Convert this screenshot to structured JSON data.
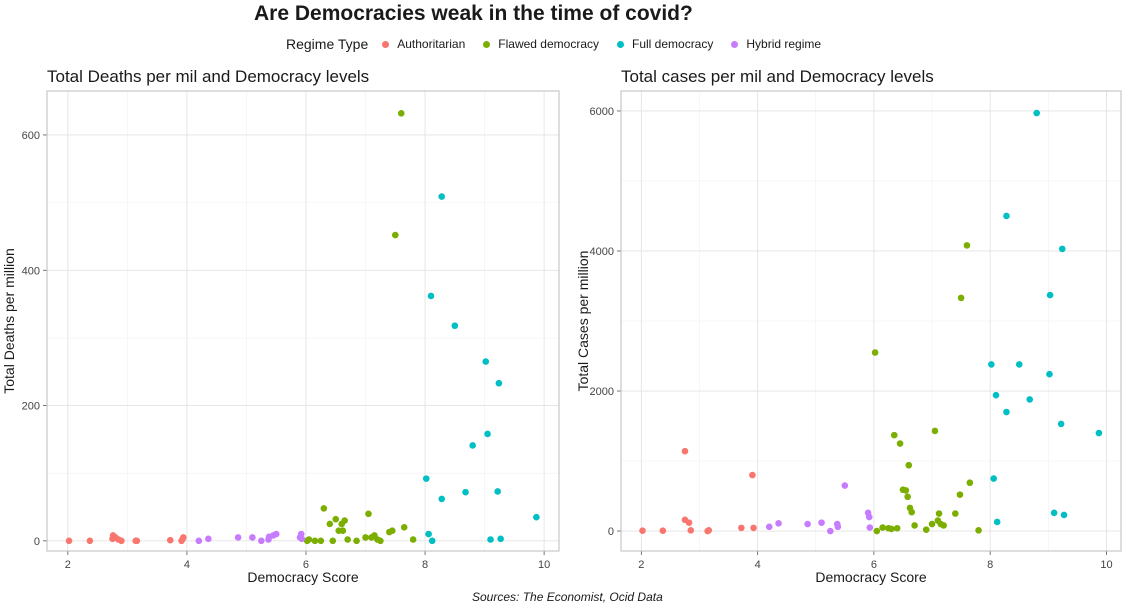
{
  "title": "Are Democracies weak in the time of covid?",
  "legend": {
    "title": "Regime Type",
    "items": [
      {
        "label": "Authoritarian",
        "color": "#F8766D"
      },
      {
        "label": "Flawed democracy",
        "color": "#7CAE00"
      },
      {
        "label": "Full democracy",
        "color": "#00BFC4"
      },
      {
        "label": "Hybrid regime",
        "color": "#C77CFF"
      }
    ]
  },
  "source": "Sources: The Economist, Ocid Data",
  "chart_data": [
    {
      "type": "scatter",
      "title": "Total Deaths per mil and Democracy levels",
      "xlabel": "Democracy Score",
      "ylabel": "Total Deaths per million",
      "xlim": [
        1.65,
        10.25
      ],
      "ylim": [
        -15,
        665
      ],
      "xticks": [
        2,
        4,
        6,
        8,
        10
      ],
      "yticks": [
        0,
        200,
        400,
        600
      ],
      "grid": true,
      "series": [
        {
          "name": "Authoritarian",
          "color": "#F8766D",
          "points": [
            [
              2.02,
              0
            ],
            [
              2.37,
              0
            ],
            [
              2.75,
              3
            ],
            [
              2.76,
              8
            ],
            [
              2.8,
              5
            ],
            [
              2.85,
              2
            ],
            [
              2.9,
              0
            ],
            [
              3.14,
              0
            ],
            [
              3.16,
              0
            ],
            [
              3.72,
              1
            ],
            [
              3.91,
              0
            ],
            [
              3.93,
              3
            ],
            [
              3.94,
              5
            ]
          ]
        },
        {
          "name": "Flawed democracy",
          "color": "#7CAE00",
          "points": [
            [
              6.02,
              0
            ],
            [
              6.05,
              2
            ],
            [
              6.15,
              0
            ],
            [
              6.25,
              0
            ],
            [
              6.3,
              48
            ],
            [
              6.4,
              25
            ],
            [
              6.45,
              0
            ],
            [
              6.5,
              32
            ],
            [
              6.55,
              15
            ],
            [
              6.6,
              25
            ],
            [
              6.62,
              15
            ],
            [
              6.65,
              30
            ],
            [
              6.7,
              2
            ],
            [
              6.85,
              0
            ],
            [
              7.0,
              5
            ],
            [
              7.05,
              40
            ],
            [
              7.1,
              5
            ],
            [
              7.15,
              8
            ],
            [
              7.2,
              2
            ],
            [
              7.25,
              0
            ],
            [
              7.4,
              13
            ],
            [
              7.45,
              15
            ],
            [
              7.5,
              452
            ],
            [
              7.6,
              632
            ],
            [
              7.65,
              20
            ],
            [
              7.8,
              2
            ]
          ]
        },
        {
          "name": "Full democracy",
          "color": "#00BFC4",
          "points": [
            [
              8.02,
              92
            ],
            [
              8.06,
              10
            ],
            [
              8.1,
              362
            ],
            [
              8.12,
              0
            ],
            [
              8.28,
              509
            ],
            [
              8.28,
              62
            ],
            [
              8.5,
              318
            ],
            [
              8.68,
              72
            ],
            [
              8.8,
              141
            ],
            [
              9.02,
              265
            ],
            [
              9.05,
              158
            ],
            [
              9.1,
              2
            ],
            [
              9.22,
              73
            ],
            [
              9.24,
              233
            ],
            [
              9.27,
              3
            ],
            [
              9.87,
              35
            ]
          ]
        },
        {
          "name": "Hybrid regime",
          "color": "#C77CFF",
          "points": [
            [
              4.2,
              0
            ],
            [
              4.36,
              3
            ],
            [
              4.86,
              5
            ],
            [
              5.1,
              5
            ],
            [
              5.25,
              0
            ],
            [
              5.37,
              2
            ],
            [
              5.38,
              6
            ],
            [
              5.45,
              8
            ],
            [
              5.5,
              10
            ],
            [
              5.9,
              5
            ],
            [
              5.92,
              10
            ],
            [
              5.93,
              3
            ]
          ]
        }
      ]
    },
    {
      "type": "scatter",
      "title": "Total cases per mil and Democracy levels",
      "xlabel": "Democracy Score",
      "ylabel": "Total Cases per million",
      "xlim": [
        1.65,
        10.25
      ],
      "ylim": [
        -285,
        6285
      ],
      "xticks": [
        2,
        4,
        6,
        8,
        10
      ],
      "yticks": [
        0,
        2000,
        4000,
        6000
      ],
      "grid": true,
      "series": [
        {
          "name": "Authoritarian",
          "color": "#F8766D",
          "points": [
            [
              2.02,
              5
            ],
            [
              2.37,
              5
            ],
            [
              2.75,
              1140
            ],
            [
              2.75,
              160
            ],
            [
              2.82,
              120
            ],
            [
              2.85,
              10
            ],
            [
              3.14,
              0
            ],
            [
              3.16,
              10
            ],
            [
              3.72,
              45
            ],
            [
              3.91,
              800
            ],
            [
              3.93,
              45
            ]
          ]
        },
        {
          "name": "Flawed democracy",
          "color": "#7CAE00",
          "points": [
            [
              6.02,
              2550
            ],
            [
              6.05,
              0
            ],
            [
              6.15,
              50
            ],
            [
              6.25,
              40
            ],
            [
              6.3,
              30
            ],
            [
              6.35,
              1370
            ],
            [
              6.4,
              40
            ],
            [
              6.45,
              1250
            ],
            [
              6.5,
              590
            ],
            [
              6.55,
              580
            ],
            [
              6.58,
              490
            ],
            [
              6.6,
              940
            ],
            [
              6.62,
              330
            ],
            [
              6.65,
              270
            ],
            [
              6.7,
              80
            ],
            [
              6.9,
              20
            ],
            [
              7.0,
              100
            ],
            [
              7.05,
              1430
            ],
            [
              7.1,
              150
            ],
            [
              7.12,
              250
            ],
            [
              7.15,
              100
            ],
            [
              7.2,
              80
            ],
            [
              7.4,
              250
            ],
            [
              7.48,
              520
            ],
            [
              7.5,
              3330
            ],
            [
              7.6,
              4080
            ],
            [
              7.65,
              690
            ],
            [
              7.8,
              10
            ]
          ]
        },
        {
          "name": "Full democracy",
          "color": "#00BFC4",
          "points": [
            [
              8.02,
              2380
            ],
            [
              8.06,
              750
            ],
            [
              8.1,
              1940
            ],
            [
              8.12,
              130
            ],
            [
              8.28,
              4500
            ],
            [
              8.28,
              1700
            ],
            [
              8.5,
              2380
            ],
            [
              8.68,
              1880
            ],
            [
              8.8,
              5970
            ],
            [
              9.02,
              2240
            ],
            [
              9.03,
              3370
            ],
            [
              9.1,
              260
            ],
            [
              9.22,
              1530
            ],
            [
              9.24,
              4030
            ],
            [
              9.27,
              230
            ],
            [
              9.87,
              1400
            ]
          ]
        },
        {
          "name": "Hybrid regime",
          "color": "#C77CFF",
          "points": [
            [
              4.2,
              60
            ],
            [
              4.36,
              110
            ],
            [
              4.86,
              100
            ],
            [
              5.1,
              120
            ],
            [
              5.25,
              0
            ],
            [
              5.37,
              100
            ],
            [
              5.38,
              60
            ],
            [
              5.5,
              650
            ],
            [
              5.9,
              260
            ],
            [
              5.92,
              200
            ],
            [
              5.93,
              50
            ]
          ]
        }
      ]
    }
  ]
}
